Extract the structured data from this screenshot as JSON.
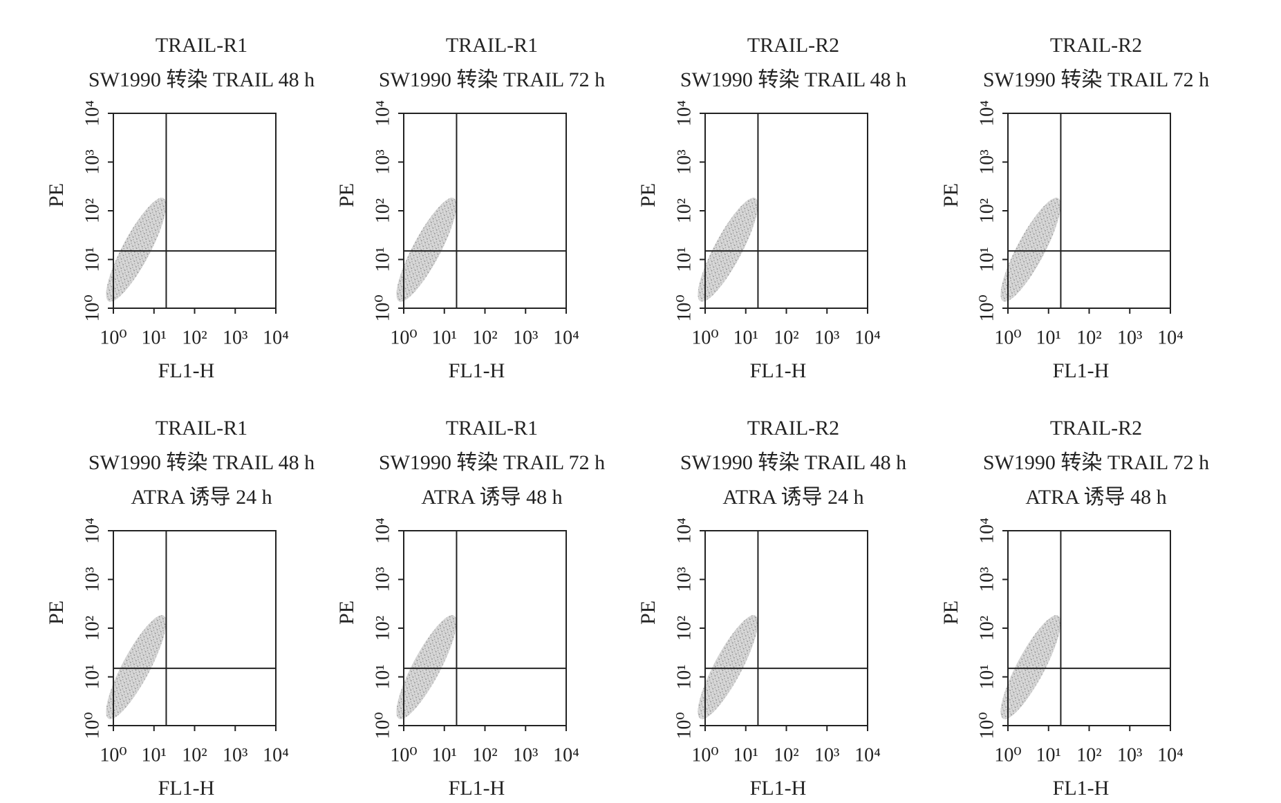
{
  "chart_data": [
    {
      "type": "scatter",
      "title_lines": [
        "TRAIL-R1",
        "SW1990 转染 TRAIL 48 h"
      ],
      "xlabel": "FL1-H",
      "ylabel": "PE",
      "xscale": "log",
      "yscale": "log",
      "xlim": [
        1,
        10000
      ],
      "ylim": [
        1,
        10000
      ],
      "xticks": [
        {
          "value": 1,
          "label": "10⁰"
        },
        {
          "value": 10,
          "label": "10¹"
        },
        {
          "value": 100,
          "label": "10²"
        },
        {
          "value": 1000,
          "label": "10³"
        },
        {
          "value": 10000,
          "label": "10⁴"
        }
      ],
      "yticks": [
        {
          "value": 1,
          "label": "10⁰"
        },
        {
          "value": 10,
          "label": "10¹"
        },
        {
          "value": 100,
          "label": "10²"
        },
        {
          "value": 1000,
          "label": "10³"
        },
        {
          "value": 10000,
          "label": "10⁴"
        }
      ],
      "gate": {
        "x": 20,
        "y": 15
      }
    },
    {
      "type": "scatter",
      "title_lines": [
        "TRAIL-R1",
        "SW1990 转染 TRAIL 72 h"
      ],
      "xlabel": "FL1-H",
      "ylabel": "PE",
      "xscale": "log",
      "yscale": "log",
      "xlim": [
        1,
        10000
      ],
      "ylim": [
        1,
        10000
      ],
      "xticks": [
        {
          "value": 1,
          "label": "10⁰"
        },
        {
          "value": 10,
          "label": "10¹"
        },
        {
          "value": 100,
          "label": "10²"
        },
        {
          "value": 1000,
          "label": "10³"
        },
        {
          "value": 10000,
          "label": "10⁴"
        }
      ],
      "yticks": [
        {
          "value": 1,
          "label": "10⁰"
        },
        {
          "value": 10,
          "label": "10¹"
        },
        {
          "value": 100,
          "label": "10²"
        },
        {
          "value": 1000,
          "label": "10³"
        },
        {
          "value": 10000,
          "label": "10⁴"
        }
      ],
      "gate": {
        "x": 20,
        "y": 15
      }
    },
    {
      "type": "scatter",
      "title_lines": [
        "TRAIL-R2",
        "SW1990 转染 TRAIL 48 h"
      ],
      "xlabel": "FL1-H",
      "ylabel": "PE",
      "xscale": "log",
      "yscale": "log",
      "xlim": [
        1,
        10000
      ],
      "ylim": [
        1,
        10000
      ],
      "xticks": [
        {
          "value": 1,
          "label": "10⁰"
        },
        {
          "value": 10,
          "label": "10¹"
        },
        {
          "value": 100,
          "label": "10²"
        },
        {
          "value": 1000,
          "label": "10³"
        },
        {
          "value": 10000,
          "label": "10⁴"
        }
      ],
      "yticks": [
        {
          "value": 1,
          "label": "10⁰"
        },
        {
          "value": 10,
          "label": "10¹"
        },
        {
          "value": 100,
          "label": "10²"
        },
        {
          "value": 1000,
          "label": "10³"
        },
        {
          "value": 10000,
          "label": "10⁴"
        }
      ],
      "gate": {
        "x": 20,
        "y": 15
      }
    },
    {
      "type": "scatter",
      "title_lines": [
        "TRAIL-R2",
        "SW1990 转染 TRAIL 72 h"
      ],
      "xlabel": "FL1-H",
      "ylabel": "PE",
      "xscale": "log",
      "yscale": "log",
      "xlim": [
        1,
        10000
      ],
      "ylim": [
        1,
        10000
      ],
      "xticks": [
        {
          "value": 1,
          "label": "10⁰"
        },
        {
          "value": 10,
          "label": "10¹"
        },
        {
          "value": 100,
          "label": "10²"
        },
        {
          "value": 1000,
          "label": "10³"
        },
        {
          "value": 10000,
          "label": "10⁴"
        }
      ],
      "yticks": [
        {
          "value": 1,
          "label": "10⁰"
        },
        {
          "value": 10,
          "label": "10¹"
        },
        {
          "value": 100,
          "label": "10²"
        },
        {
          "value": 1000,
          "label": "10³"
        },
        {
          "value": 10000,
          "label": "10⁴"
        }
      ],
      "gate": {
        "x": 20,
        "y": 15
      }
    },
    {
      "type": "scatter",
      "title_lines": [
        "TRAIL-R1",
        "SW1990 转染 TRAIL 48 h",
        "ATRA 诱导 24 h"
      ],
      "xlabel": "FL1-H",
      "ylabel": "PE",
      "xscale": "log",
      "yscale": "log",
      "xlim": [
        1,
        10000
      ],
      "ylim": [
        1,
        10000
      ],
      "xticks": [
        {
          "value": 1,
          "label": "10⁰"
        },
        {
          "value": 10,
          "label": "10¹"
        },
        {
          "value": 100,
          "label": "10²"
        },
        {
          "value": 1000,
          "label": "10³"
        },
        {
          "value": 10000,
          "label": "10⁴"
        }
      ],
      "yticks": [
        {
          "value": 1,
          "label": "10⁰"
        },
        {
          "value": 10,
          "label": "10¹"
        },
        {
          "value": 100,
          "label": "10²"
        },
        {
          "value": 1000,
          "label": "10³"
        },
        {
          "value": 10000,
          "label": "10⁴"
        }
      ],
      "gate": {
        "x": 20,
        "y": 15
      }
    },
    {
      "type": "scatter",
      "title_lines": [
        "TRAIL-R1",
        "SW1990 转染 TRAIL 72 h",
        "ATRA 诱导 48 h"
      ],
      "xlabel": "FL1-H",
      "ylabel": "PE",
      "xscale": "log",
      "yscale": "log",
      "xlim": [
        1,
        10000
      ],
      "ylim": [
        1,
        10000
      ],
      "xticks": [
        {
          "value": 1,
          "label": "10⁰"
        },
        {
          "value": 10,
          "label": "10¹"
        },
        {
          "value": 100,
          "label": "10²"
        },
        {
          "value": 1000,
          "label": "10³"
        },
        {
          "value": 10000,
          "label": "10⁴"
        }
      ],
      "yticks": [
        {
          "value": 1,
          "label": "10⁰"
        },
        {
          "value": 10,
          "label": "10¹"
        },
        {
          "value": 100,
          "label": "10²"
        },
        {
          "value": 1000,
          "label": "10³"
        },
        {
          "value": 10000,
          "label": "10⁴"
        }
      ],
      "gate": {
        "x": 20,
        "y": 15
      }
    },
    {
      "type": "scatter",
      "title_lines": [
        "TRAIL-R2",
        "SW1990 转染 TRAIL 48 h",
        "ATRA 诱导 24 h"
      ],
      "xlabel": "FL1-H",
      "ylabel": "PE",
      "xscale": "log",
      "yscale": "log",
      "xlim": [
        1,
        10000
      ],
      "ylim": [
        1,
        10000
      ],
      "xticks": [
        {
          "value": 1,
          "label": "10⁰"
        },
        {
          "value": 10,
          "label": "10¹"
        },
        {
          "value": 100,
          "label": "10²"
        },
        {
          "value": 1000,
          "label": "10³"
        },
        {
          "value": 10000,
          "label": "10⁴"
        }
      ],
      "yticks": [
        {
          "value": 1,
          "label": "10⁰"
        },
        {
          "value": 10,
          "label": "10¹"
        },
        {
          "value": 100,
          "label": "10²"
        },
        {
          "value": 1000,
          "label": "10³"
        },
        {
          "value": 10000,
          "label": "10⁴"
        }
      ],
      "gate": {
        "x": 20,
        "y": 15
      }
    },
    {
      "type": "scatter",
      "title_lines": [
        "TRAIL-R2",
        "SW1990 转染 TRAIL 72 h",
        "ATRA 诱导 48 h"
      ],
      "xlabel": "FL1-H",
      "ylabel": "PE",
      "xscale": "log",
      "yscale": "log",
      "xlim": [
        1,
        10000
      ],
      "ylim": [
        1,
        10000
      ],
      "xticks": [
        {
          "value": 1,
          "label": "10⁰"
        },
        {
          "value": 10,
          "label": "10¹"
        },
        {
          "value": 100,
          "label": "10²"
        },
        {
          "value": 1000,
          "label": "10³"
        },
        {
          "value": 10000,
          "label": "10⁴"
        }
      ],
      "yticks": [
        {
          "value": 1,
          "label": "10⁰"
        },
        {
          "value": 10,
          "label": "10¹"
        },
        {
          "value": 100,
          "label": "10²"
        },
        {
          "value": 1000,
          "label": "10³"
        },
        {
          "value": 10000,
          "label": "10⁴"
        }
      ],
      "gate": {
        "x": 20,
        "y": 15
      }
    }
  ]
}
